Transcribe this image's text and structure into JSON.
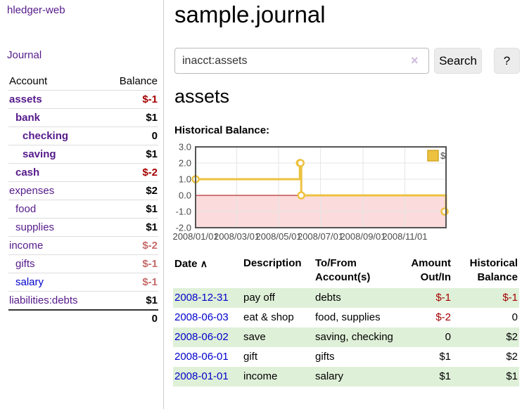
{
  "app": {
    "title": "hledger-web"
  },
  "colors": {
    "link_purple": "#551A8B",
    "link_blue": "#0000CC",
    "negative_strong": "#A40000",
    "negative_faint": "#C66A6A",
    "row_stripe_green": "#DFF0D8",
    "chart_gold": "#EDC240"
  },
  "sidebar": {
    "journal_label": "Journal",
    "headers": {
      "account": "Account",
      "balance": "Balance"
    },
    "accounts": [
      {
        "name": "assets",
        "balance": "$-1"
      },
      {
        "name": "bank",
        "balance": "$1"
      },
      {
        "name": "checking",
        "balance": "0"
      },
      {
        "name": "saving",
        "balance": "$1"
      },
      {
        "name": "cash",
        "balance": "$-2"
      },
      {
        "name": "expenses",
        "balance": "$2"
      },
      {
        "name": "food",
        "balance": "$1"
      },
      {
        "name": "supplies",
        "balance": "$1"
      },
      {
        "name": "income",
        "balance": "$-2"
      },
      {
        "name": "gifts",
        "balance": "$-1"
      },
      {
        "name": "salary",
        "balance": "$-1"
      },
      {
        "name": "liabilities:debts",
        "balance": "$1"
      }
    ],
    "total": "0"
  },
  "header": {
    "title": "sample.journal"
  },
  "search": {
    "value": "inacct:assets",
    "clear_icon": "×",
    "button_label": "Search",
    "help_label": "?"
  },
  "account_page": {
    "heading": "assets",
    "chart_title": "Historical Balance:"
  },
  "chart_data": {
    "type": "line",
    "step": true,
    "title": "Historical Balance:",
    "series": [
      {
        "name": "$",
        "color": "#EDC240",
        "points": [
          [
            "2008-01-01",
            1
          ],
          [
            "2008-06-01",
            2
          ],
          [
            "2008-06-02",
            2
          ],
          [
            "2008-06-03",
            0
          ],
          [
            "2008-12-31",
            -1
          ]
        ]
      }
    ],
    "xlim": [
      "2008-01-01",
      "2008-12-31"
    ],
    "ylim": [
      -2,
      3
    ],
    "x_ticks": [
      {
        "date": "2008-01-01",
        "label": "2008/01/01"
      },
      {
        "date": "2008-03-01",
        "label": "2008/03/01"
      },
      {
        "date": "2008-05-01",
        "label": "2008/05/01"
      },
      {
        "date": "2008-07-01",
        "label": "2008/07/01"
      },
      {
        "date": "2008-09-01",
        "label": "2008/09/01"
      },
      {
        "date": "2008-11-01",
        "label": "2008/11/01"
      }
    ],
    "y_ticks": [
      {
        "value": 3,
        "label": "3.0"
      },
      {
        "value": 2,
        "label": "2.0"
      },
      {
        "value": 1,
        "label": "1.0"
      },
      {
        "value": 0,
        "label": "0.0"
      },
      {
        "value": -1,
        "label": "-1.0"
      },
      {
        "value": -2,
        "label": "-2.0"
      }
    ],
    "legend": {
      "label": "$",
      "position": "top-right"
    },
    "negative_fill": "#FBDBDB",
    "zero_line_color": "#A40000",
    "grid_color": "#E6E6E6",
    "border_color": "#545454"
  },
  "register": {
    "headers": {
      "date": "Date",
      "sort_indicator": "∧",
      "description": "Description",
      "accounts": "To/From Account(s)",
      "amount": "Amount Out/In",
      "balance": "Historical Balance"
    },
    "rows": [
      {
        "date": "2008-12-31",
        "description": "pay off",
        "accounts": "debts",
        "amount": "$-1",
        "balance": "$-1"
      },
      {
        "date": "2008-06-03",
        "description": "eat & shop",
        "accounts": "food, supplies",
        "amount": "$-2",
        "balance": "0"
      },
      {
        "date": "2008-06-02",
        "description": "save",
        "accounts": "saving, checking",
        "amount": "0",
        "balance": "$2"
      },
      {
        "date": "2008-06-01",
        "description": "gift",
        "accounts": "gifts",
        "amount": "$1",
        "balance": "$2"
      },
      {
        "date": "2008-01-01",
        "description": "income",
        "accounts": "salary",
        "amount": "$1",
        "balance": "$1"
      }
    ]
  }
}
